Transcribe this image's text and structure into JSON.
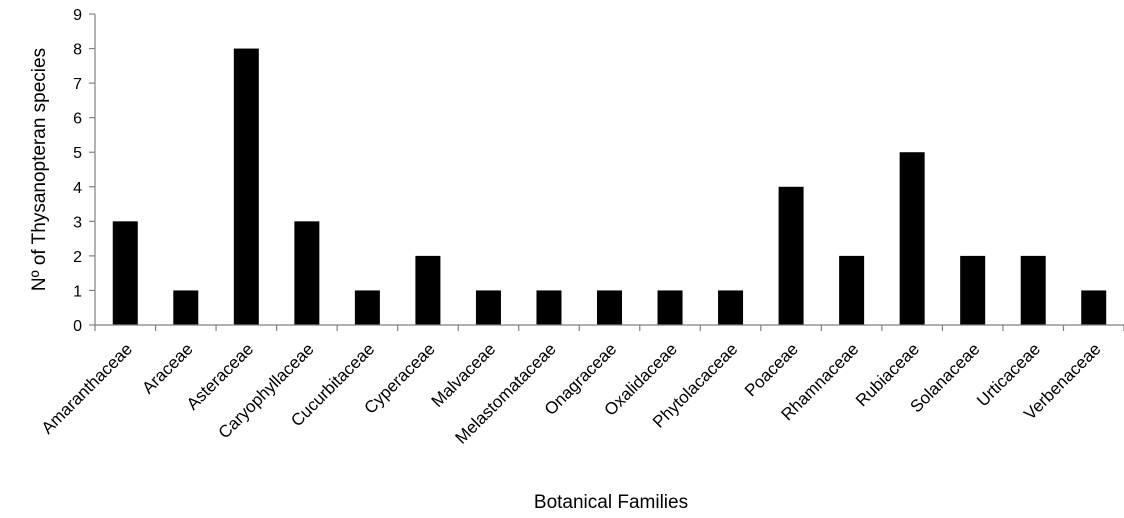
{
  "chart_data": {
    "type": "bar",
    "title": "",
    "xlabel": "Botanical Families",
    "ylabel": "Nº of Thysanopteran species",
    "ylim": [
      0,
      9
    ],
    "yticks": [
      0,
      1,
      2,
      3,
      4,
      5,
      6,
      7,
      8,
      9
    ],
    "grid": false,
    "legend": "none",
    "bar_color": "#000000",
    "categories": [
      "Amaranthaceae",
      "Araceae",
      "Asteraceae",
      "Caryophyllaceae",
      "Cucurbitaceae",
      "Cyperaceae",
      "Malvaceae",
      "Melastomataceae",
      "Onagraceae",
      "Oxalidaceae",
      "Phytolacaceae",
      "Poaceae",
      "Rhamnaceae",
      "Rubiaceae",
      "Solanaceae",
      "Urticaceae",
      "Verbenaceae"
    ],
    "values": [
      3,
      1,
      8,
      3,
      1,
      2,
      1,
      1,
      1,
      1,
      1,
      4,
      2,
      5,
      2,
      2,
      1
    ]
  }
}
